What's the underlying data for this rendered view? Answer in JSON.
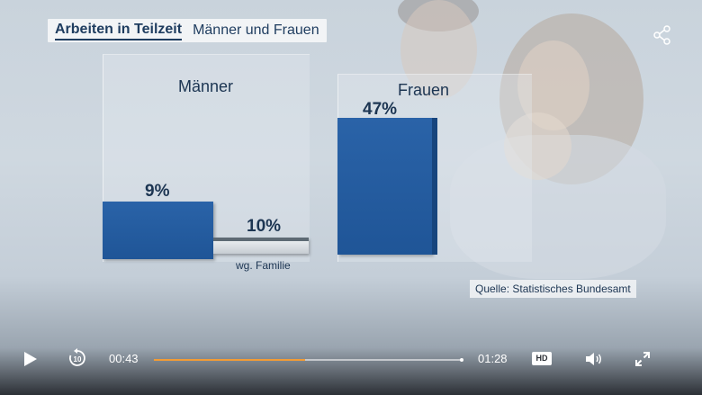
{
  "header": {
    "title": "Arbeiten in Teilzeit",
    "subtitle": "Männer und Frauen"
  },
  "chart_data": {
    "type": "bar",
    "categories": [
      "Männer",
      "Frauen"
    ],
    "series": [
      {
        "values": [
          9,
          47
        ]
      }
    ],
    "annotations": [
      {
        "category": "Männer",
        "value": 10,
        "label": "wg. Familie"
      }
    ],
    "labels": {
      "men": "Männer",
      "women": "Frauen",
      "men_value": "9%",
      "women_value": "47%",
      "family_value": "10%",
      "family_note": "wg. Familie"
    }
  },
  "source": "Quelle: Statistisches Bundesamt",
  "player": {
    "current_time": "00:43",
    "duration": "01:28",
    "progress": 0.49,
    "hd_label": "HD",
    "icons": [
      "play-icon",
      "replay-10-icon",
      "volume-icon",
      "fullscreen-icon",
      "share-icon"
    ]
  }
}
